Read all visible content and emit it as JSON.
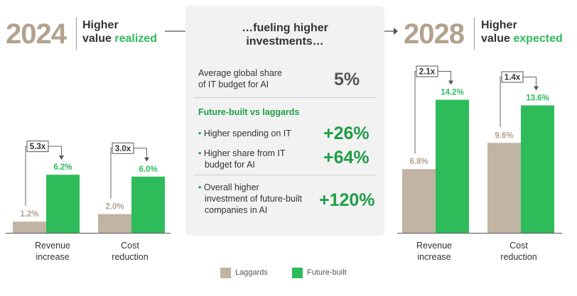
{
  "left_header": {
    "year": "2024",
    "line1": "Higher",
    "line2_plain": "value",
    "line2_accent": "realized"
  },
  "right_header": {
    "year": "2028",
    "line1": "Higher",
    "line2_plain": "value",
    "line2_accent": "expected"
  },
  "center": {
    "title_line1": "…fueling higher",
    "title_line2": "investments…",
    "avg_share_line1": "Average global share",
    "avg_share_line2": "of IT budget for AI",
    "avg_share_value": "5%",
    "subheading": "Future-built vs laggards",
    "items": [
      {
        "line1": "Higher spending on IT",
        "line2": "",
        "line3": "",
        "value": "+26%"
      },
      {
        "line1": "Higher share from IT",
        "line2": "budget for AI",
        "line3": "",
        "value": "+64%"
      },
      {
        "line1": "Overall higher",
        "line2": "investment of future-built",
        "line3": "companies in AI",
        "value": "+120%"
      }
    ]
  },
  "chart_data": [
    {
      "type": "bar",
      "title": "2024 Higher value realized",
      "categories": [
        "Revenue increase",
        "Cost reduction"
      ],
      "category_lines": [
        [
          "Revenue",
          "increase"
        ],
        [
          "Cost",
          "reduction"
        ]
      ],
      "series": [
        {
          "name": "Laggards",
          "values": [
            1.2,
            2.0
          ]
        },
        {
          "name": "Future-built",
          "values": [
            6.2,
            6.0
          ]
        }
      ],
      "value_labels": [
        [
          "1.2%",
          "6.2%"
        ],
        [
          "2.0%",
          "6.0%"
        ]
      ],
      "multipliers": [
        "5.3x",
        "3.0x"
      ],
      "ylim": [
        0,
        15
      ]
    },
    {
      "type": "bar",
      "title": "2028 Higher value expected",
      "categories": [
        "Revenue increase",
        "Cost reduction"
      ],
      "category_lines": [
        [
          "Revenue",
          "increase"
        ],
        [
          "Cost",
          "reduction"
        ]
      ],
      "series": [
        {
          "name": "Laggards",
          "values": [
            6.8,
            9.6
          ]
        },
        {
          "name": "Future-built",
          "values": [
            14.2,
            13.6
          ]
        }
      ],
      "value_labels": [
        [
          "6.8%",
          "14.2%"
        ],
        [
          "9.6%",
          "13.6%"
        ]
      ],
      "multipliers": [
        "2.1x",
        "1.4x"
      ],
      "ylim": [
        0,
        15
      ]
    }
  ],
  "legend": [
    {
      "label": "Laggards",
      "color": "#c2b4a3"
    },
    {
      "label": "Future-built",
      "color": "#2ebc5a"
    }
  ],
  "colors": {
    "laggards": "#c2b4a3",
    "future_built": "#2ebc5a",
    "laggard_label": "#b3a28d",
    "future_label": "#2ebc5a"
  }
}
